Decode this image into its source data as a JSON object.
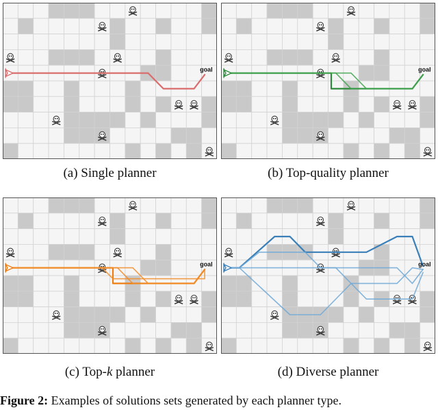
{
  "grid": {
    "cols": 14,
    "rows": 10,
    "colors": {
      "free": "#f5f5f5",
      "blocked": "#c9c9c9",
      "line": "#d3d3d3",
      "border": "#555555"
    },
    "blocked": [
      [
        1,
        1
      ],
      [
        3,
        0
      ],
      [
        4,
        0
      ],
      [
        5,
        0
      ],
      [
        7,
        1
      ],
      [
        7,
        2
      ],
      [
        10,
        1
      ],
      [
        13,
        0
      ],
      [
        13,
        1
      ],
      [
        3,
        3
      ],
      [
        4,
        3
      ],
      [
        9,
        4
      ],
      [
        10,
        4
      ],
      [
        10,
        3
      ],
      [
        5,
        3
      ],
      [
        4,
        7
      ],
      [
        5,
        7
      ],
      [
        6,
        7
      ],
      [
        4,
        8
      ],
      [
        5,
        8
      ],
      [
        6,
        8
      ],
      [
        7,
        7
      ],
      [
        0,
        5
      ],
      [
        0,
        6
      ],
      [
        4,
        5
      ],
      [
        4,
        6
      ],
      [
        1,
        5
      ],
      [
        1,
        6
      ],
      [
        8,
        5
      ],
      [
        8,
        6
      ],
      [
        10,
        6
      ],
      [
        13,
        6
      ],
      [
        13,
        7
      ],
      [
        12,
        8
      ],
      [
        11,
        8
      ],
      [
        0,
        9
      ],
      [
        12,
        9
      ],
      [
        9,
        7
      ],
      [
        10,
        9
      ],
      [
        8,
        9
      ]
    ],
    "skulls": [
      [
        8,
        0
      ],
      [
        6,
        1
      ],
      [
        0,
        3
      ],
      [
        7,
        3
      ],
      [
        6,
        4
      ],
      [
        11,
        6
      ],
      [
        12,
        6
      ],
      [
        3,
        7
      ],
      [
        6,
        8
      ],
      [
        13,
        9
      ]
    ]
  },
  "labels": {
    "goal": "goal"
  },
  "panels": [
    {
      "id": "a",
      "caption": "(a) Single planner",
      "color": "#e88a8a",
      "dark": "#d96d6d",
      "paths": [
        [
          [
            0.5,
            4.5
          ],
          [
            9.5,
            4.5
          ],
          [
            10.5,
            5.5
          ],
          [
            12.5,
            5.5
          ],
          [
            13.2,
            4.6
          ]
        ]
      ]
    },
    {
      "id": "b",
      "caption": "(b) Top-quality planner",
      "color": "#3fa34d",
      "dark": "#2c8a3a",
      "paths": [
        [
          [
            0.5,
            4.5
          ],
          [
            6.5,
            4.5
          ],
          [
            7.2,
            4.5
          ],
          [
            7.2,
            5.5
          ],
          [
            12.5,
            5.5
          ],
          [
            13.2,
            4.6
          ]
        ],
        [
          [
            0.5,
            4.5
          ],
          [
            7.5,
            4.5
          ],
          [
            8.5,
            5.5
          ],
          [
            12.5,
            5.5
          ],
          [
            13.2,
            4.6
          ]
        ],
        [
          [
            0.5,
            4.5
          ],
          [
            8.5,
            4.5
          ],
          [
            9.5,
            5.5
          ],
          [
            12.5,
            5.5
          ],
          [
            13.2,
            4.6
          ]
        ]
      ]
    },
    {
      "id": "c",
      "caption": "(c) Top-",
      "caption_k": "k",
      "caption_tail": " planner",
      "color": "#f28c28",
      "dark": "#ee7e12",
      "paths": [
        [
          [
            0.5,
            4.5
          ],
          [
            6.5,
            4.5
          ],
          [
            7.2,
            4.5
          ],
          [
            7.2,
            5.5
          ],
          [
            12.5,
            5.5
          ],
          [
            13.2,
            4.6
          ]
        ],
        [
          [
            0.5,
            4.5
          ],
          [
            7.5,
            4.5
          ],
          [
            8.5,
            5.5
          ],
          [
            12.5,
            5.5
          ],
          [
            13.2,
            4.6
          ]
        ],
        [
          [
            0.5,
            4.5
          ],
          [
            8.5,
            4.5
          ],
          [
            9.5,
            5.5
          ],
          [
            12.5,
            5.5
          ],
          [
            13.2,
            4.6
          ]
        ],
        [
          [
            6.5,
            4.5
          ],
          [
            7.2,
            5.2
          ],
          [
            13.2,
            5.2
          ],
          [
            13.2,
            4.6
          ]
        ]
      ]
    },
    {
      "id": "d",
      "caption": "(d) Diverse planner",
      "color": "#6fa8d6",
      "dark": "#3a7fb8",
      "paths": [
        [
          [
            0.5,
            4.5
          ],
          [
            1.2,
            4.5
          ],
          [
            3.5,
            2.5
          ],
          [
            4.5,
            2.5
          ],
          [
            5.5,
            3.5
          ],
          [
            9.5,
            3.5
          ],
          [
            11.5,
            2.5
          ],
          [
            12.5,
            2.5
          ],
          [
            13.2,
            4.4
          ]
        ],
        [
          [
            0.5,
            4.5
          ],
          [
            1.2,
            4.5
          ],
          [
            2.5,
            3.5
          ],
          [
            5.5,
            3.5
          ],
          [
            6.5,
            4.5
          ],
          [
            7.5,
            4.5
          ],
          [
            9.5,
            6.5
          ],
          [
            12.5,
            6.5
          ],
          [
            13.2,
            4.8
          ]
        ],
        [
          [
            0.5,
            4.5
          ],
          [
            1.2,
            4.5
          ],
          [
            4.5,
            7.5
          ],
          [
            6.5,
            7.5
          ],
          [
            8.5,
            5.5
          ],
          [
            11.5,
            5.5
          ],
          [
            12.5,
            4.5
          ],
          [
            13.2,
            4.6
          ]
        ],
        [
          [
            0.5,
            4.5
          ],
          [
            11.5,
            4.5
          ],
          [
            12.5,
            5.5
          ],
          [
            13.2,
            4.6
          ]
        ]
      ]
    }
  ],
  "figure_caption": {
    "label": "Figure 2:",
    "text": " Examples of solutions sets generated by each planner type."
  }
}
